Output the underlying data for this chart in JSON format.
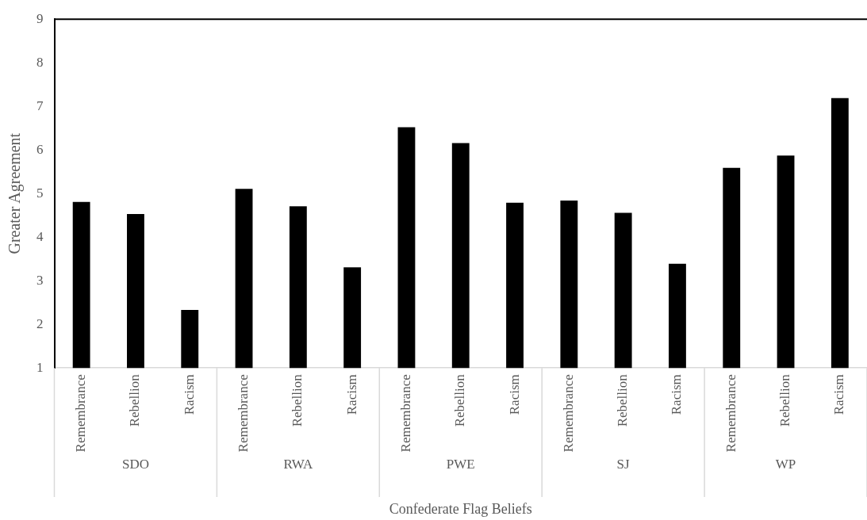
{
  "chart_data": {
    "type": "bar",
    "xlabel": "Confederate Flag Beliefs",
    "ylabel": "Greater Agreement",
    "categories": [
      "Remembrance",
      "Rebellion",
      "Racism",
      "Remembrance",
      "Rebellion",
      "Racism",
      "Remembrance",
      "Rebellion",
      "Racism",
      "Remembrance",
      "Rebellion",
      "Racism",
      "Remembrance",
      "Rebellion",
      "Racism"
    ],
    "values": [
      4.81,
      4.53,
      2.33,
      5.11,
      4.71,
      3.31,
      6.52,
      6.16,
      4.79,
      4.84,
      4.56,
      3.39,
      5.59,
      5.87,
      7.19
    ],
    "color": "#000000",
    "ylim": [
      1,
      9
    ],
    "yticks": [
      1,
      2,
      3,
      4,
      5,
      6,
      7,
      8,
      9
    ],
    "grid": false,
    "legend": false,
    "annotations": [
      "SDO",
      "RWA",
      "PWE",
      "SJ",
      "WP"
    ]
  }
}
